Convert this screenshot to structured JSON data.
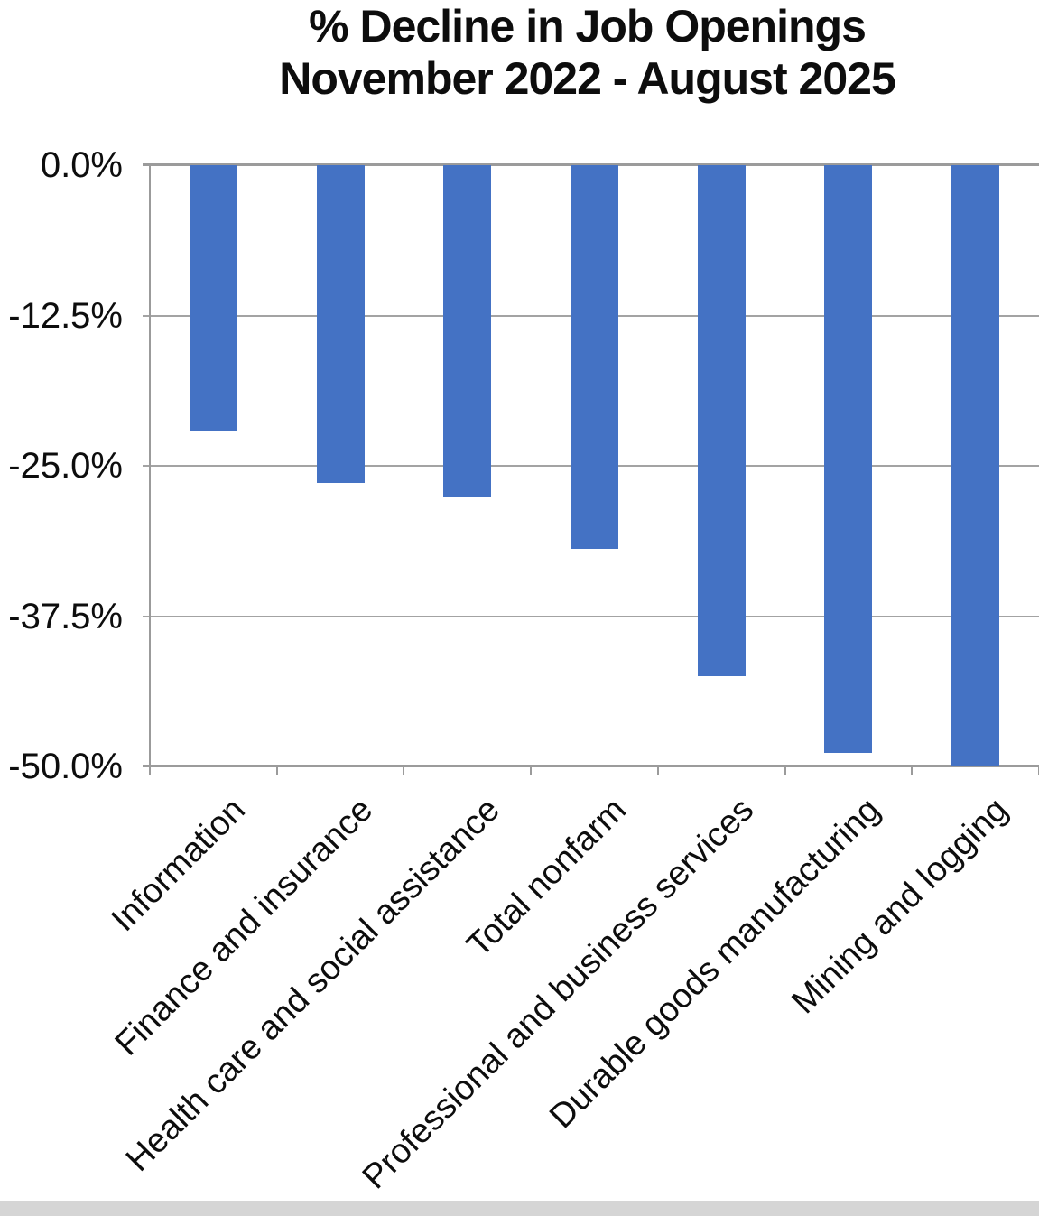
{
  "header": {
    "title_line1": "% Decline in Job Openings",
    "title_line2": "November 2022 - August 2025"
  },
  "chart_data": {
    "type": "bar",
    "title": "% Decline in Job Openings November 2022 - August 2025",
    "categories": [
      "Information",
      "Finance and insurance",
      "Health care and social assistance",
      "Total nonfarm",
      "Professional and business services",
      "Durable goods manufacturing",
      "Mining and logging"
    ],
    "values": [
      -22.1,
      -26.4,
      -27.6,
      -31.9,
      -42.5,
      -48.9,
      -50.0
    ],
    "value_unit": "%",
    "xlabel": "",
    "ylabel": "",
    "ylim": [
      -50,
      0
    ],
    "yticks": [
      {
        "label": "0.0%",
        "value": 0
      },
      {
        "label": "-12.5%",
        "value": -12.5
      },
      {
        "label": "-25.0%",
        "value": -25
      },
      {
        "label": "-37.5%",
        "value": -37.5
      },
      {
        "label": "-50.0%",
        "value": -50
      }
    ],
    "grid": true,
    "legend": false,
    "colors": {
      "bar": "#4472C4",
      "grid": "#A3A3A3",
      "axis": "#9B9B9B",
      "text": "#0D0D0D",
      "background": "#FFFFFF",
      "bottom_strip": "#D5D5D5"
    }
  }
}
